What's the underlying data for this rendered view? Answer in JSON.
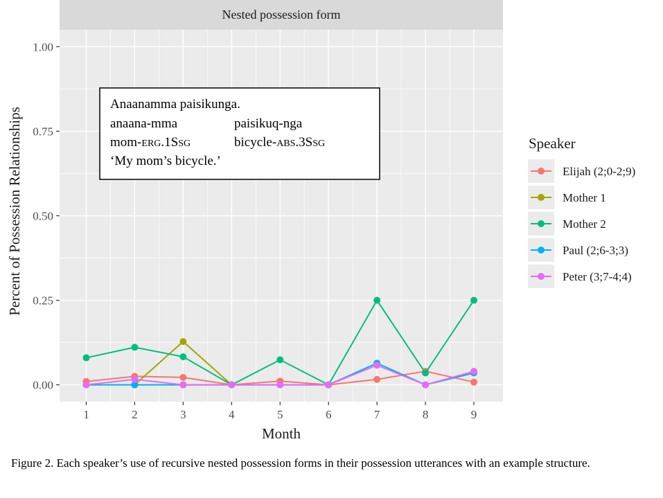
{
  "chart_data": {
    "type": "line",
    "facet_title": "Nested possession form",
    "xlabel": "Month",
    "ylabel": "Percent of Possession Relationships",
    "x": [
      1,
      2,
      3,
      4,
      5,
      6,
      7,
      8,
      9
    ],
    "x_ticks": [
      "1",
      "2",
      "3",
      "4",
      "5",
      "6",
      "7",
      "8",
      "9"
    ],
    "xlim": [
      0.45,
      9.6
    ],
    "ylim": [
      -0.05,
      1.05
    ],
    "y_ticks": [
      {
        "value": 0.0,
        "label": "0.00"
      },
      {
        "value": 0.25,
        "label": "0.25"
      },
      {
        "value": 0.5,
        "label": "0.50"
      },
      {
        "value": 0.75,
        "label": "0.75"
      },
      {
        "value": 1.0,
        "label": "1.00"
      }
    ],
    "grid": true,
    "legend_title": "Speaker",
    "legend_position": "right",
    "series": [
      {
        "name": "Elijah (2;0-2;9)",
        "color": "#F8766D",
        "values": [
          0.01,
          0.025,
          0.022,
          0.0,
          0.011,
          0.0,
          0.016,
          0.04,
          0.008
        ]
      },
      {
        "name": "Mother 1",
        "color": "#A3A500",
        "values": [
          null,
          0.0,
          0.128,
          0.0,
          null,
          null,
          null,
          null,
          null
        ]
      },
      {
        "name": "Mother 2",
        "color": "#00BF7D",
        "values": [
          0.08,
          0.111,
          0.083,
          0.0,
          0.074,
          0.0,
          0.25,
          0.035,
          0.25
        ]
      },
      {
        "name": "Paul (2;6-3;3)",
        "color": "#00B0F6",
        "values": [
          0.0,
          0.0,
          0.0,
          0.0,
          0.0,
          0.0,
          0.064,
          0.0,
          0.035
        ]
      },
      {
        "name": "Peter (3;7-4;4)",
        "color": "#E76BF3",
        "values": [
          0.0,
          0.016,
          0.0,
          0.0,
          0.0,
          0.0,
          0.058,
          0.0,
          0.04
        ]
      }
    ],
    "annotation": {
      "line1": "Anaanamma paisikunga.",
      "gloss_a": "anaana-mma",
      "gloss_b": "paisikuq-nga",
      "morph_a_pre": "mom-",
      "morph_a_sc": "ERG",
      "morph_a_mid": ".1S",
      "morph_a_sc2": "SG",
      "morph_b_pre": "bicycle-",
      "morph_b_sc": "ABS",
      "morph_b_mid": ".3S",
      "morph_b_sc2": "SG",
      "translation": "‘My mom’s bicycle.’"
    }
  },
  "caption": "Figure 2. Each speaker’s use of recursive nested possession forms in their possession utterances with an example structure."
}
